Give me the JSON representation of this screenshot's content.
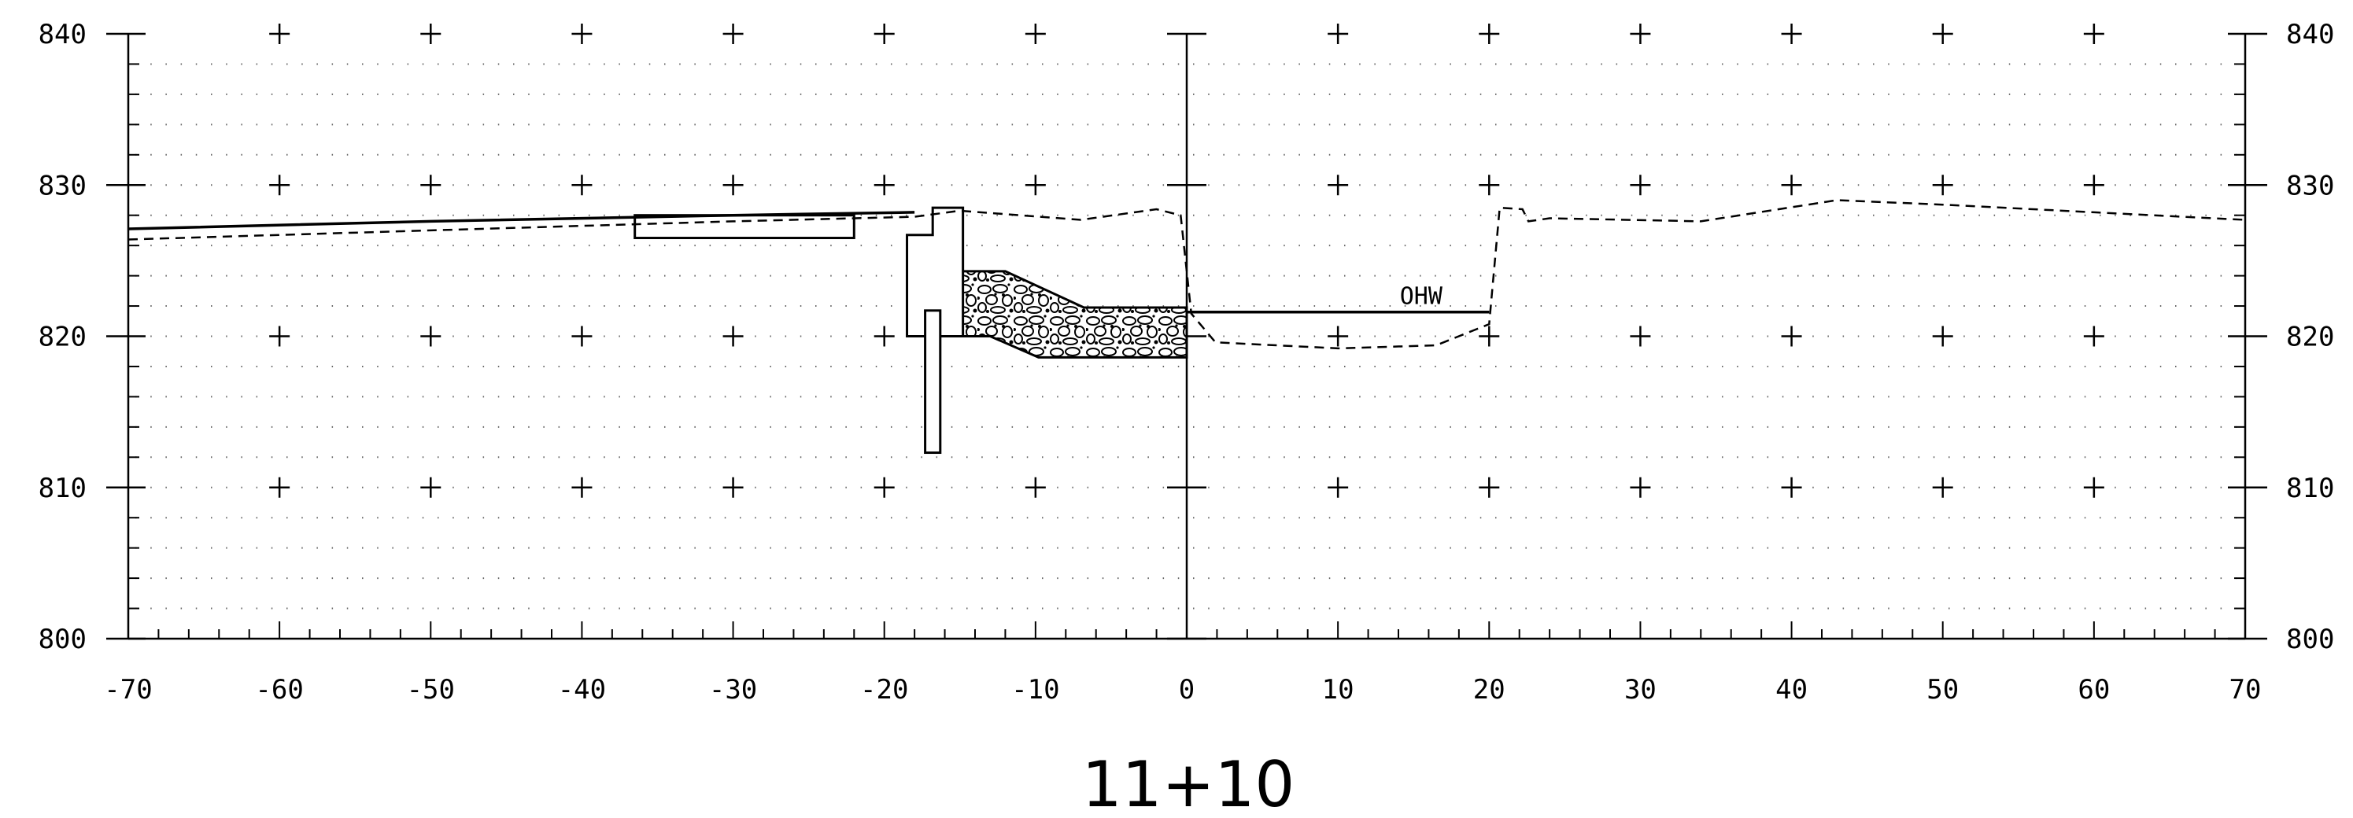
{
  "chart_data": {
    "type": "line",
    "title": "11+10",
    "xlabel": "",
    "ylabel": "",
    "xlim": [
      -70,
      70
    ],
    "ylim": [
      800,
      840
    ],
    "x_ticks": [
      -70,
      -60,
      -50,
      -40,
      -30,
      -20,
      -10,
      0,
      10,
      20,
      30,
      40,
      50,
      60,
      70
    ],
    "y_ticks": [
      800,
      810,
      820,
      830,
      840
    ],
    "grid": "dotted",
    "series": [
      {
        "style": "solid",
        "points": [
          [
            -70,
            827.1
          ],
          [
            -50,
            827.6
          ],
          [
            -30,
            828.0
          ],
          [
            -18,
            828.2
          ]
        ]
      },
      {
        "style": "dashed",
        "points": [
          [
            -70,
            826.4
          ],
          [
            -50,
            827.0
          ],
          [
            -30,
            827.6
          ],
          [
            -18,
            827.9
          ],
          [
            -15,
            828.3
          ],
          [
            -7,
            827.7
          ],
          [
            -2,
            828.4
          ],
          [
            -0.4,
            828.0
          ],
          [
            0.3,
            821.5
          ],
          [
            1.9,
            819.6
          ],
          [
            10,
            819.2
          ],
          [
            16.5,
            819.4
          ],
          [
            20,
            820.8
          ],
          [
            20.7,
            828.5
          ],
          [
            22.2,
            828.4
          ],
          [
            22.6,
            827.6
          ],
          [
            24,
            827.8
          ],
          [
            34,
            827.6
          ],
          [
            43,
            829.0
          ],
          [
            50,
            828.7
          ],
          [
            60,
            828.2
          ],
          [
            70,
            827.7
          ]
        ]
      }
    ],
    "annotations": [
      {
        "text": "OHW",
        "elevation": 821.6,
        "x_from": 0,
        "x_to": 20
      }
    ],
    "structures": {
      "slab": {
        "x": [
          -36.5,
          -22
        ],
        "y": [
          826.5,
          828.0
        ]
      },
      "wall": {
        "x": [
          -18.5,
          -14.8
        ],
        "top": 828.5,
        "step_x": -16.8,
        "step_y": 826.7,
        "base": 820.0
      },
      "pile": {
        "x": [
          -17.3,
          -16.3
        ],
        "y": [
          812.3,
          821.7
        ]
      },
      "riprap": {
        "points": [
          [
            -15,
            824.3
          ],
          [
            -12,
            824.3
          ],
          [
            -6.8,
            821.9
          ],
          [
            0,
            821.9
          ],
          [
            0,
            818.6
          ],
          [
            -9.8,
            818.6
          ],
          [
            -13,
            820.0
          ],
          [
            -15,
            820.0
          ]
        ]
      }
    }
  }
}
